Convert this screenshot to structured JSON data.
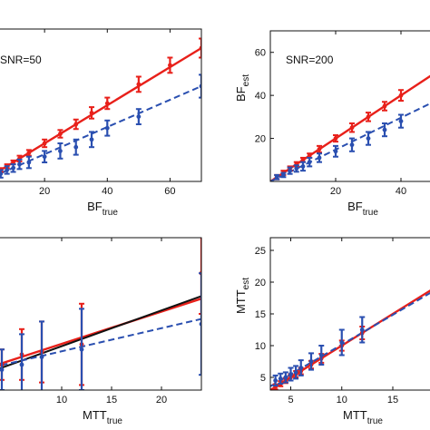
{
  "colors": {
    "red": "#e8201a",
    "blue": "#2a4fb0",
    "black": "#111111"
  },
  "chart_data": [
    {
      "id": "p1",
      "type": "line",
      "annotation": "SNR=50",
      "xlabel_main": "BF",
      "xlabel_sub": "true",
      "ylabel_main": "",
      "ylabel_sub": "",
      "xlim": [
        0,
        70
      ],
      "ylim": [
        0,
        80
      ],
      "xticks": [
        "20",
        "40",
        "60"
      ],
      "xtick_values": [
        20,
        40,
        60
      ],
      "yticks": [],
      "ytick_values": [],
      "lines": [
        {
          "name": "",
          "color": "red",
          "style": "solid",
          "x": [
            0,
            70
          ],
          "y": [
            0,
            70
          ]
        },
        {
          "name": "",
          "color": "blue",
          "style": "dashed",
          "x": [
            0,
            70
          ],
          "y": [
            0,
            50
          ]
        }
      ],
      "series": [
        {
          "name": "",
          "color": "red",
          "x": [
            2,
            4,
            6,
            8,
            10,
            12,
            15,
            20,
            25,
            30,
            35,
            40,
            50,
            60,
            70
          ],
          "y": [
            2,
            4,
            6,
            8,
            10,
            12,
            15,
            20,
            25,
            30,
            36,
            41,
            51,
            61,
            70
          ],
          "err": [
            1,
            1,
            1,
            1,
            1,
            1.5,
            1.5,
            2,
            2,
            2.5,
            3,
            3,
            4,
            4,
            5
          ]
        },
        {
          "name": "",
          "color": "blue",
          "x": [
            2,
            4,
            6,
            8,
            10,
            12,
            15,
            20,
            25,
            30,
            35,
            40,
            50,
            70
          ],
          "y": [
            2,
            3,
            4,
            6,
            7,
            9,
            10,
            13,
            16,
            18,
            22,
            28,
            34,
            50
          ],
          "err": [
            1,
            1,
            2,
            2,
            2,
            2.5,
            3,
            3,
            4,
            4,
            4,
            4,
            4,
            6
          ]
        }
      ]
    },
    {
      "id": "p2",
      "type": "line",
      "annotation": "SNR=200",
      "xlabel_main": "BF",
      "xlabel_sub": "true",
      "ylabel_main": "BF",
      "ylabel_sub": "est",
      "xlim": [
        0,
        50
      ],
      "ylim": [
        0,
        70
      ],
      "xticks": [
        "20",
        "40"
      ],
      "xtick_values": [
        20,
        40
      ],
      "yticks": [
        "20",
        "40",
        "60"
      ],
      "ytick_values": [
        20,
        40,
        60
      ],
      "lines": [
        {
          "name": "",
          "color": "red",
          "style": "solid",
          "x": [
            0,
            50
          ],
          "y": [
            0,
            50
          ]
        },
        {
          "name": "",
          "color": "blue",
          "style": "dashed",
          "x": [
            0,
            50
          ],
          "y": [
            0,
            37
          ]
        }
      ],
      "series": [
        {
          "name": "",
          "color": "red",
          "x": [
            2,
            4,
            6,
            8,
            10,
            12,
            15,
            20,
            25,
            30,
            35,
            40,
            50
          ],
          "y": [
            2,
            4,
            6,
            8,
            10,
            12,
            15,
            20,
            25,
            30,
            35,
            40,
            50
          ],
          "err": [
            1,
            1,
            1,
            1,
            1,
            1,
            1.5,
            1.5,
            2,
            2,
            2,
            2.5,
            4
          ]
        },
        {
          "name": "",
          "color": "blue",
          "x": [
            2,
            4,
            6,
            8,
            10,
            12,
            15,
            20,
            25,
            30,
            35,
            40,
            50
          ],
          "y": [
            2,
            3,
            5,
            6,
            7,
            9,
            11,
            14,
            17,
            20,
            24,
            28,
            36
          ],
          "err": [
            1,
            1,
            1.5,
            1.5,
            2,
            2,
            2,
            2.5,
            3,
            3,
            3,
            3,
            4
          ]
        }
      ]
    },
    {
      "id": "p3",
      "type": "line",
      "annotation": "",
      "xlabel_main": "MTT",
      "xlabel_sub": "true",
      "ylabel_main": "",
      "ylabel_sub": "",
      "xlim": [
        2,
        24
      ],
      "ylim": [
        0,
        30
      ],
      "xticks": [
        "10",
        "15",
        "20"
      ],
      "xtick_values": [
        10,
        15,
        20
      ],
      "yticks": [],
      "ytick_values": [],
      "lines": [
        {
          "name": "",
          "color": "red",
          "style": "solid",
          "x": [
            2,
            24
          ],
          "y": [
            4,
            18
          ]
        },
        {
          "name": "",
          "color": "black",
          "style": "solid",
          "x": [
            2,
            24
          ],
          "y": [
            3,
            18.5
          ]
        },
        {
          "name": "",
          "color": "blue",
          "style": "dashed",
          "x": [
            2,
            24
          ],
          "y": [
            4,
            14
          ]
        }
      ],
      "series": [
        {
          "name": "",
          "color": "red",
          "x": [
            3,
            4,
            6,
            8,
            12,
            24
          ],
          "y": [
            4,
            5,
            7,
            7.5,
            9,
            23
          ],
          "err": [
            2,
            3,
            5,
            6,
            8,
            8
          ]
        },
        {
          "name": "",
          "color": "blue",
          "x": [
            3,
            4,
            6,
            8,
            12,
            24
          ],
          "y": [
            3,
            4,
            5,
            6.5,
            8,
            13
          ],
          "err": [
            2,
            4,
            6,
            7,
            8,
            10
          ]
        }
      ]
    },
    {
      "id": "p4",
      "type": "line",
      "annotation": "",
      "xlabel_main": "MTT",
      "xlabel_sub": "true",
      "ylabel_main": "MTT",
      "ylabel_sub": "est",
      "xlim": [
        3,
        19
      ],
      "ylim": [
        3,
        27
      ],
      "xticks": [
        "5",
        "10",
        "15"
      ],
      "xtick_values": [
        5,
        10,
        15
      ],
      "yticks": [
        "5",
        "10",
        "15",
        "20",
        "25"
      ],
      "ytick_values": [
        5,
        10,
        15,
        20,
        25
      ],
      "lines": [
        {
          "name": "",
          "color": "red",
          "style": "solid",
          "x": [
            3,
            19
          ],
          "y": [
            3,
            19
          ]
        },
        {
          "name": "",
          "color": "blue",
          "style": "dashed",
          "x": [
            3,
            19
          ],
          "y": [
            3.6,
            18.6
          ]
        }
      ],
      "series": [
        {
          "name": "",
          "color": "red",
          "x": [
            3.5,
            4,
            4.5,
            5,
            5.5,
            6,
            7,
            8,
            10,
            12
          ],
          "y": [
            3.5,
            4,
            4.5,
            5,
            5.5,
            6,
            7,
            8,
            10,
            12
          ],
          "err": [
            0.4,
            0.4,
            0.4,
            0.5,
            0.5,
            0.5,
            0.6,
            0.7,
            0.8,
            1
          ]
        },
        {
          "name": "",
          "color": "blue",
          "x": [
            3.5,
            4,
            4.5,
            5,
            5.5,
            6,
            7,
            8,
            10,
            12
          ],
          "y": [
            4.5,
            4.8,
            5,
            5.5,
            5.8,
            6.5,
            7.5,
            8.5,
            10.5,
            12.5
          ],
          "err": [
            0.8,
            0.8,
            0.8,
            1,
            1,
            1.2,
            1.3,
            1.5,
            2,
            2
          ]
        }
      ]
    }
  ]
}
